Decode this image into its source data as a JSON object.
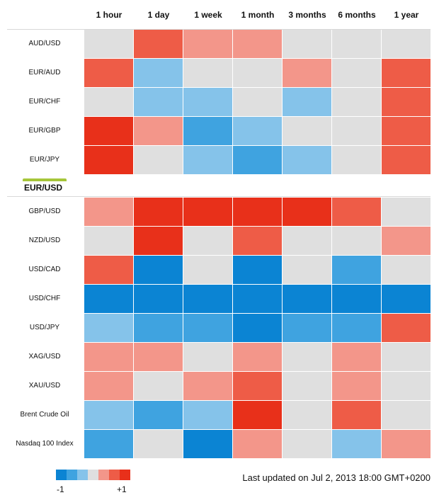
{
  "chart_data": {
    "type": "heatmap",
    "columns": [
      "1 hour",
      "1 day",
      "1 week",
      "1 month",
      "3 months",
      "6 months",
      "1 year"
    ],
    "rows_above": [
      {
        "label": "AUD/USD",
        "levels": [
          0,
          3,
          2,
          2,
          0,
          0,
          0
        ]
      },
      {
        "label": "EUR/AUD",
        "levels": [
          3,
          -1,
          0,
          0,
          2,
          0,
          3
        ]
      },
      {
        "label": "EUR/CHF",
        "levels": [
          0,
          -1,
          -1,
          0,
          -1,
          0,
          3
        ]
      },
      {
        "label": "EUR/GBP",
        "levels": [
          4,
          2,
          -2,
          -1,
          0,
          0,
          3
        ]
      },
      {
        "label": "EUR/JPY",
        "levels": [
          4,
          0,
          -1,
          -2,
          -1,
          0,
          3
        ]
      }
    ],
    "reference_pair": "EUR/USD",
    "rows_below": [
      {
        "label": "GBP/USD",
        "levels": [
          2,
          4,
          4,
          4,
          4,
          3,
          0
        ]
      },
      {
        "label": "NZD/USD",
        "levels": [
          0,
          4,
          0,
          3,
          0,
          0,
          2
        ]
      },
      {
        "label": "USD/CAD",
        "levels": [
          3,
          -3,
          0,
          -3,
          0,
          -2,
          0
        ]
      },
      {
        "label": "USD/CHF",
        "levels": [
          -3,
          -3,
          -3,
          -3,
          -3,
          -3,
          -3
        ]
      },
      {
        "label": "USD/JPY",
        "levels": [
          -1,
          -2,
          -2,
          -3,
          -2,
          -2,
          3
        ]
      },
      {
        "label": "XAG/USD",
        "levels": [
          2,
          2,
          0,
          2,
          0,
          2,
          0
        ]
      },
      {
        "label": "XAU/USD",
        "levels": [
          2,
          0,
          2,
          3,
          0,
          2,
          0
        ]
      },
      {
        "label": "Brent Crude Oil",
        "levels": [
          -1,
          -2,
          -1,
          4,
          0,
          3,
          0
        ]
      },
      {
        "label": "Nasdaq 100 Index",
        "levels": [
          -2,
          0,
          -3,
          2,
          0,
          -1,
          2
        ]
      }
    ],
    "scale_levels": [
      -3,
      -2,
      -1,
      0,
      2,
      3,
      4
    ],
    "colors": {
      "-3": "#0b84d3",
      "-2": "#3fa3e0",
      "-1": "#85c3ea",
      "0": "#dfdfdf",
      "2": "#f3968a",
      "3": "#ee5c47",
      "4": "#e8301a"
    },
    "legend": {
      "min_label": "-1",
      "max_label": "+1"
    }
  },
  "footer": {
    "updated": "Last updated on Jul 2, 2013 18:00 GMT+0200"
  }
}
